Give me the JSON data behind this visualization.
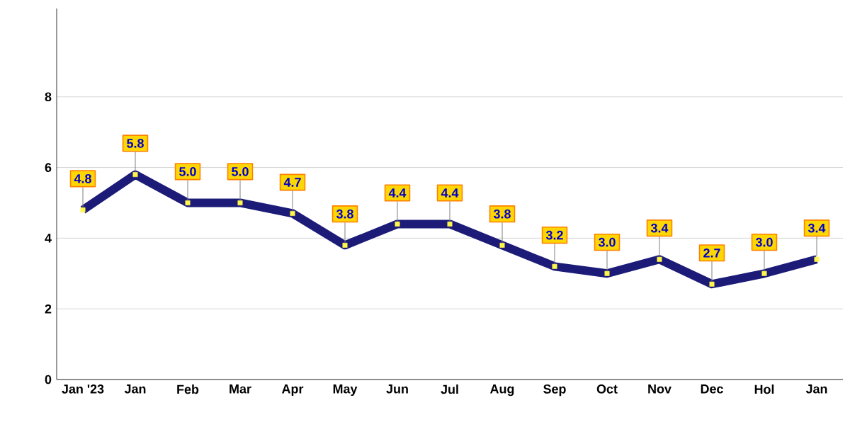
{
  "chart_data": {
    "type": "line",
    "categories": [
      "Jan '23",
      "Jan",
      "Feb",
      "Mar",
      "Apr",
      "May",
      "Jun",
      "Jul",
      "Aug",
      "Sep",
      "Oct",
      "Nov",
      "Dec",
      "Hol",
      "Jan"
    ],
    "series": [
      {
        "color": "#1c1c78",
        "values": [
          4.8,
          5.8,
          5.0,
          5.0,
          4.7,
          3.8,
          4.4,
          4.4,
          3.8,
          3.2,
          3.0,
          3.4,
          2.7,
          3.0,
          3.4
        ],
        "value_labels": [
          "4.8",
          "5.8",
          "5.0",
          "5.0",
          "4.7",
          "3.8",
          "4.4",
          "4.4",
          "3.8",
          "3.2",
          "3.0",
          "3.4",
          "2.7",
          "3.0",
          "3.4"
        ]
      }
    ],
    "ylim": [
      0,
      10.5
    ],
    "yticks": [
      0,
      2,
      4,
      6,
      8
    ],
    "grid": "y",
    "marker": "square",
    "line_style": "solid"
  }
}
